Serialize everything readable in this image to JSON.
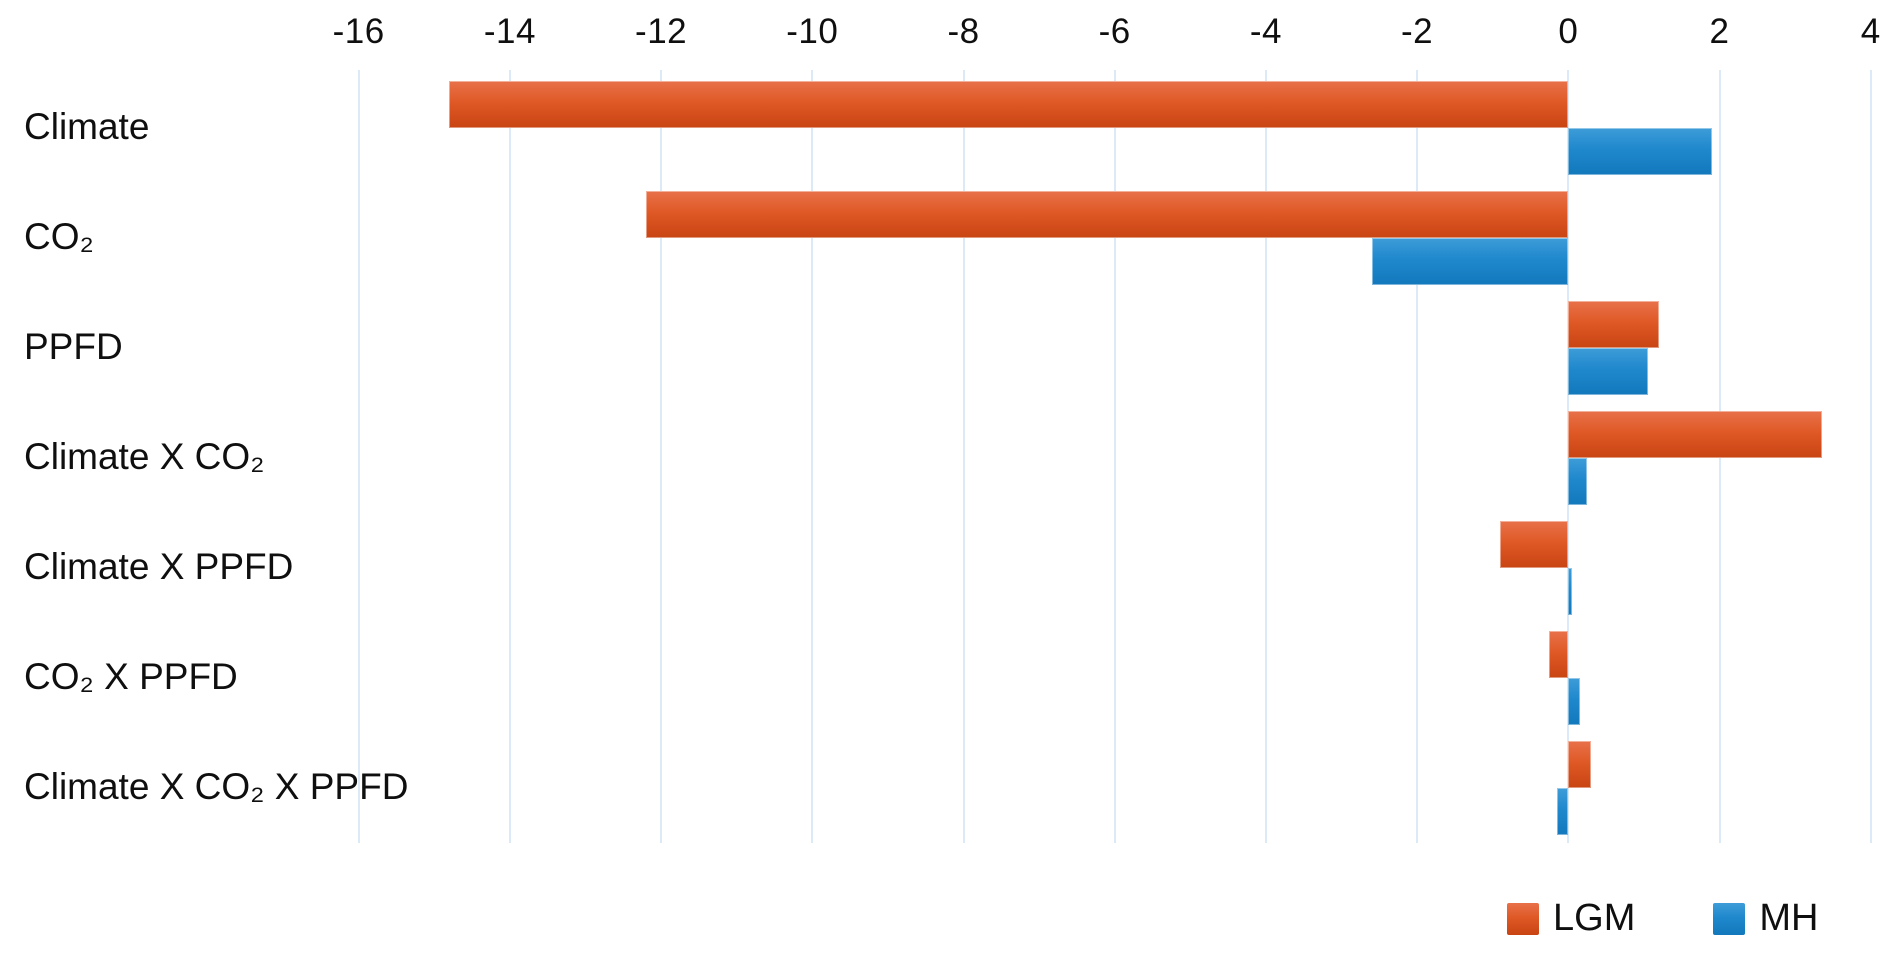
{
  "chart_data": {
    "type": "bar",
    "orientation": "horizontal",
    "title": "",
    "xlabel": "",
    "ylabel": "",
    "categories": [
      "Climate",
      "CO₂",
      "PPFD",
      "Climate X CO₂",
      "Climate X PPFD",
      "CO₂ X PPFD",
      "Climate X CO₂ X PPFD"
    ],
    "series": [
      {
        "name": "LGM",
        "values": [
          -14.8,
          -12.2,
          1.2,
          3.35,
          -0.9,
          -0.25,
          0.3
        ]
      },
      {
        "name": "MH",
        "values": [
          1.9,
          -2.6,
          1.05,
          0.25,
          0.05,
          0.15,
          -0.15
        ]
      }
    ],
    "xlim": [
      -16,
      4
    ],
    "x_ticks": [
      -16,
      -14,
      -12,
      -10,
      -8,
      -6,
      -4,
      -2,
      0,
      2,
      4
    ],
    "x_tick_labels": [
      "-16",
      "-14",
      "-12",
      "-10",
      "-8",
      "-6",
      "-4",
      "-2",
      "0",
      "2",
      "4"
    ],
    "grid": true,
    "grid_axis": "x",
    "legend_position": "bottom-right"
  },
  "colors": {
    "lgm": {
      "light": "#E8714A",
      "base": "#DF5926",
      "dark": "#C84412"
    },
    "mh": {
      "light": "#3E9DD8",
      "base": "#1F88CD",
      "dark": "#1378BC"
    },
    "gridline": "#DCE9F6",
    "text": "#0F0F0F",
    "background": "#FFFFFF"
  }
}
